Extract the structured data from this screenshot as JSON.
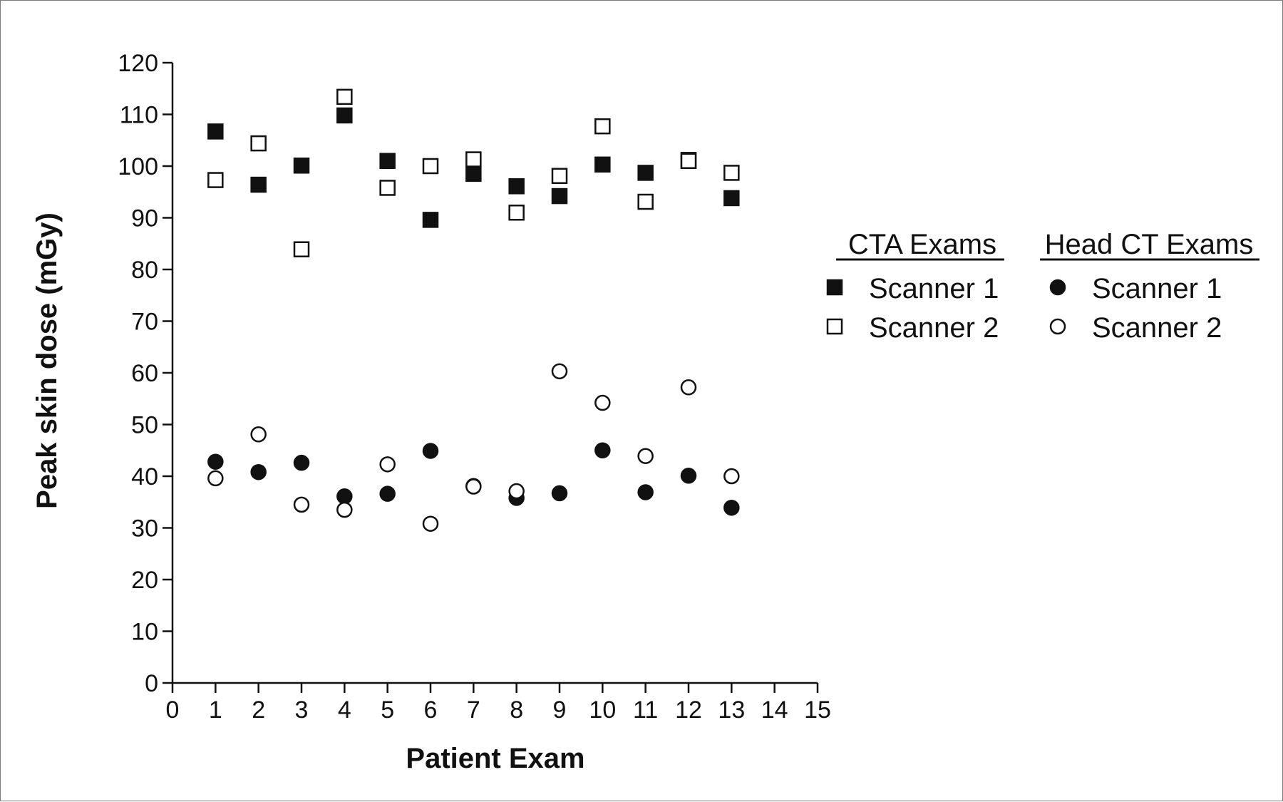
{
  "chart_data": {
    "type": "scatter",
    "xlabel": "Patient Exam",
    "ylabel": "Peak skin dose (mGy)",
    "xlim": [
      0,
      15
    ],
    "ylim": [
      0,
      120
    ],
    "xticks": [
      "0",
      "1",
      "2",
      "3",
      "4",
      "5",
      "6",
      "7",
      "8",
      "9",
      "10",
      "11",
      "12",
      "13",
      "14",
      "15"
    ],
    "yticks": [
      "0",
      "10",
      "20",
      "30",
      "40",
      "50",
      "60",
      "70",
      "80",
      "90",
      "100",
      "110",
      "120"
    ],
    "grid": false,
    "legend_position": "right",
    "legend_groups": [
      {
        "title": "CTA Exams",
        "entries": [
          {
            "label": "Scanner 1",
            "series": 0
          },
          {
            "label": "Scanner 2",
            "series": 1
          }
        ]
      },
      {
        "title": "Head CT Exams",
        "entries": [
          {
            "label": "Scanner 1",
            "series": 2
          },
          {
            "label": "Scanner 2",
            "series": 3
          }
        ]
      }
    ],
    "series": [
      {
        "group": "CTA Exams",
        "name": "Scanner 1",
        "marker": "square-filled",
        "x": [
          1,
          2,
          3,
          4,
          5,
          6,
          7,
          8,
          9,
          10,
          11,
          12,
          13
        ],
        "y": [
          106.7,
          96.4,
          100.1,
          109.8,
          101.0,
          89.6,
          98.5,
          96.1,
          94.2,
          100.3,
          98.7,
          101.2,
          93.8
        ]
      },
      {
        "group": "CTA Exams",
        "name": "Scanner 2",
        "marker": "square-open",
        "x": [
          1,
          2,
          3,
          4,
          5,
          6,
          7,
          8,
          9,
          10,
          11,
          12,
          13
        ],
        "y": [
          97.3,
          104.4,
          83.9,
          113.4,
          95.8,
          100.0,
          101.3,
          91.0,
          98.1,
          107.7,
          93.1,
          101.0,
          98.7
        ]
      },
      {
        "group": "Head CT Exams",
        "name": "Scanner 1",
        "marker": "circle-filled",
        "x": [
          1,
          2,
          3,
          4,
          5,
          6,
          7,
          8,
          9,
          10,
          11,
          12,
          13
        ],
        "y": [
          42.8,
          40.8,
          42.6,
          36.1,
          36.6,
          44.9,
          38.1,
          35.8,
          36.7,
          45.0,
          36.9,
          40.1,
          33.9
        ]
      },
      {
        "group": "Head CT Exams",
        "name": "Scanner 2",
        "marker": "circle-open",
        "x": [
          1,
          2,
          3,
          4,
          5,
          6,
          7,
          8,
          9,
          10,
          11,
          12,
          13
        ],
        "y": [
          39.6,
          48.1,
          34.5,
          33.5,
          42.3,
          30.8,
          38.0,
          37.1,
          60.3,
          54.2,
          43.9,
          57.2,
          40.0
        ]
      }
    ]
  }
}
